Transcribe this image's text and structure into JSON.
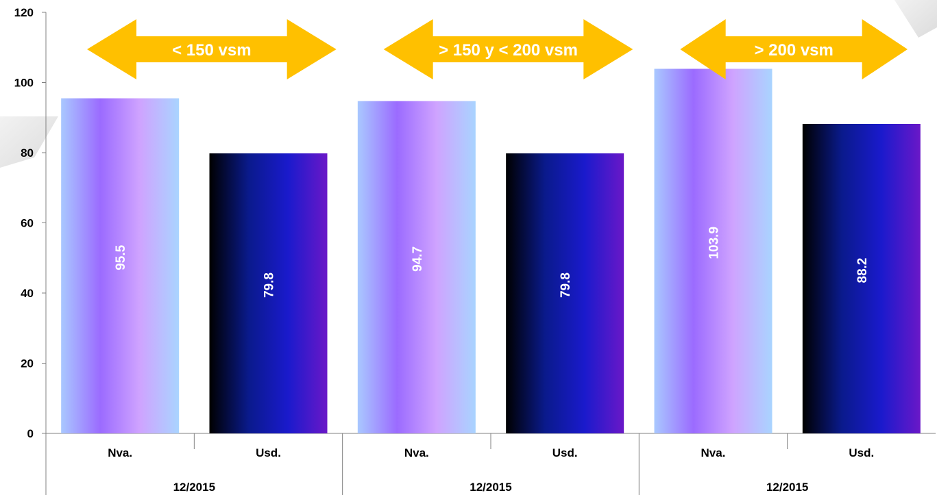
{
  "chart_data": {
    "type": "bar",
    "ylim": [
      0,
      120
    ],
    "yticks": [
      0,
      20,
      40,
      60,
      80,
      100,
      120
    ],
    "grid": false,
    "legend": "none",
    "groups": [
      {
        "label": "12/2015",
        "band": "< 150 vsm",
        "bars": [
          {
            "category": "Nva.",
            "value": 95.5,
            "label": "95.5"
          },
          {
            "category": "Usd.",
            "value": 79.8,
            "label": "79.8"
          }
        ]
      },
      {
        "label": "12/2015",
        "band": "> 150 y < 200 vsm",
        "bars": [
          {
            "category": "Nva.",
            "value": 94.7,
            "label": "94.7"
          },
          {
            "category": "Usd.",
            "value": 79.8,
            "label": "79.8"
          }
        ]
      },
      {
        "label": "12/2015",
        "band": "> 200 vsm",
        "bars": [
          {
            "category": "Nva.",
            "value": 103.9,
            "label": "103.9"
          },
          {
            "category": "Usd.",
            "value": 88.2,
            "label": "88.2"
          }
        ]
      }
    ],
    "colors": {
      "arrow": "#FFC000",
      "nva_gradient": [
        "#A9C8FF",
        "#9B6BFF",
        "#CFA3FF",
        "#A9D4FF"
      ],
      "usd_gradient": [
        "#000000",
        "#0A1A8C",
        "#1A1ACC",
        "#6A18C8"
      ]
    }
  }
}
